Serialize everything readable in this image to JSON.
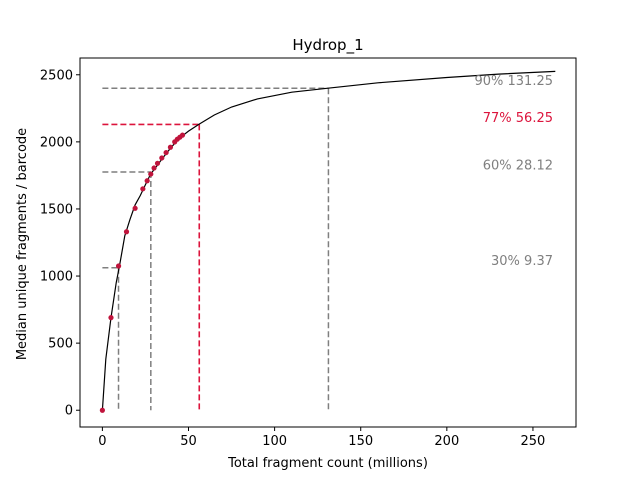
{
  "chart_data": {
    "type": "line",
    "title": "Hydrop_1",
    "xlabel": "Total fragment count (millions)",
    "ylabel": "Median unique fragments / barcode",
    "xlim": [
      -13,
      275
    ],
    "ylim": [
      -125,
      2625
    ],
    "xticks": [
      0,
      50,
      100,
      150,
      200,
      250
    ],
    "yticks": [
      0,
      500,
      1000,
      1500,
      2000,
      2500
    ],
    "grid": false,
    "colors": {
      "curve": "#000000",
      "points": "#c0143c",
      "highlight": "#dc143c",
      "ref": "#7f7f7f"
    },
    "curve": {
      "x": [
        0,
        2,
        5,
        8,
        10,
        13,
        16,
        19,
        22,
        25,
        28,
        31,
        35,
        40,
        45,
        50,
        56,
        65,
        75,
        90,
        110,
        131,
        160,
        200,
        230,
        263
      ],
      "y": [
        0,
        380,
        690,
        950,
        1080,
        1300,
        1420,
        1530,
        1600,
        1680,
        1760,
        1810,
        1880,
        1960,
        2030,
        2080,
        2130,
        2200,
        2260,
        2320,
        2370,
        2400,
        2440,
        2480,
        2505,
        2525
      ]
    },
    "points": {
      "x": [
        0,
        5,
        9.4,
        14,
        19,
        23.5,
        26,
        28.1,
        30,
        32,
        34.5,
        37,
        39.5,
        42,
        43.5,
        45,
        46.5
      ],
      "y": [
        0,
        690,
        1075,
        1330,
        1505,
        1650,
        1710,
        1760,
        1805,
        1840,
        1880,
        1920,
        1960,
        2000,
        2020,
        2035,
        2050
      ]
    },
    "annotations": [
      {
        "label": "90% 131.25",
        "x": 131.25,
        "y": 2400,
        "label_y": 2460,
        "highlight": false
      },
      {
        "label": "77% 56.25",
        "x": 56.25,
        "y": 2130,
        "label_y": 2185,
        "highlight": true
      },
      {
        "label": "60% 28.12",
        "x": 28.12,
        "y": 1775,
        "label_y": 1830,
        "highlight": false
      },
      {
        "label": "30% 9.37",
        "x": 9.37,
        "y": 1062,
        "label_y": 1120,
        "highlight": false
      }
    ]
  }
}
